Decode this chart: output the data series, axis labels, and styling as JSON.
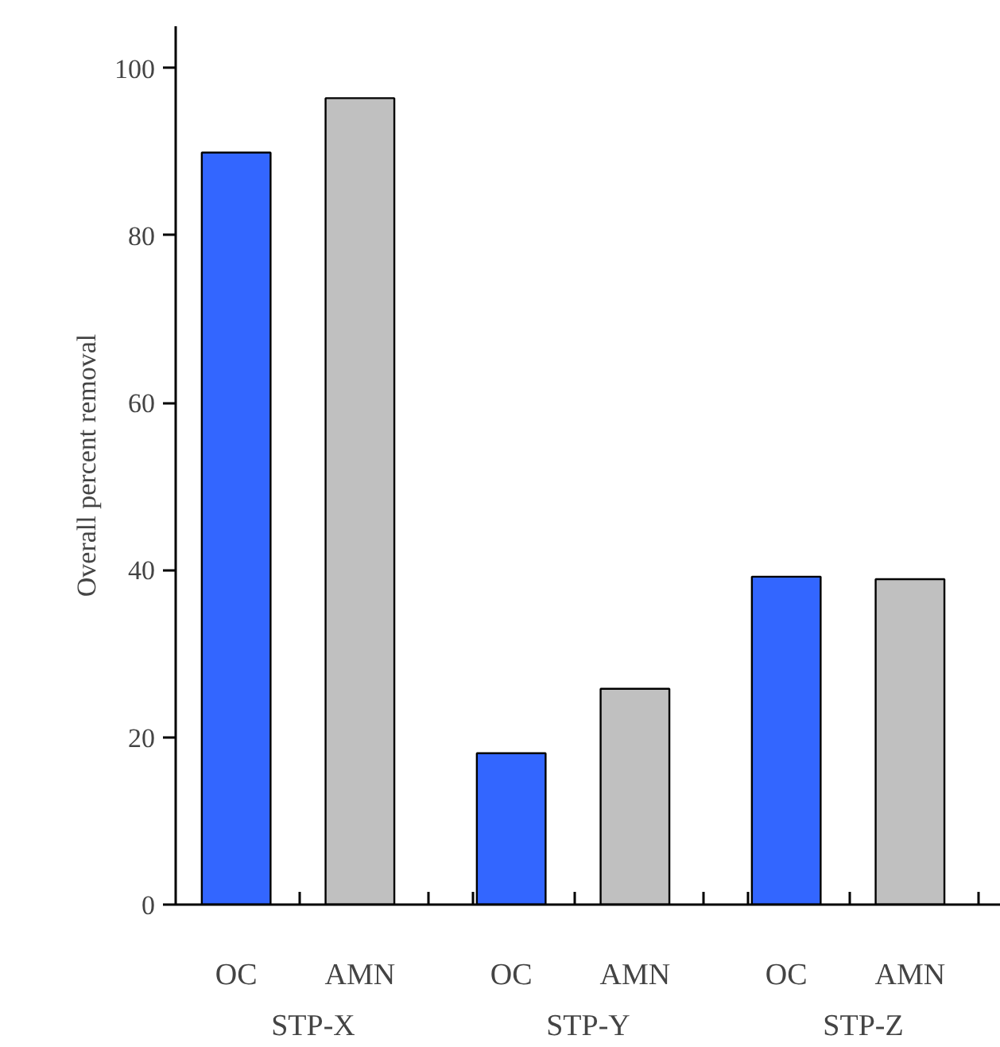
{
  "chart_data": {
    "type": "bar",
    "ylabel": "Overall percent removal",
    "categories": [
      "STP-X",
      "STP-Y",
      "STP-Z"
    ],
    "series": [
      {
        "name": "OC",
        "color": "#3366ff",
        "values": [
          89.9,
          18.1,
          39.2
        ]
      },
      {
        "name": "AMN",
        "color": "#c0c0c0",
        "values": [
          96.4,
          25.8,
          38.9
        ]
      }
    ],
    "ylim": [
      0,
      105
    ],
    "yticks": [
      0,
      20,
      40,
      60,
      80,
      100
    ],
    "grid": false
  }
}
